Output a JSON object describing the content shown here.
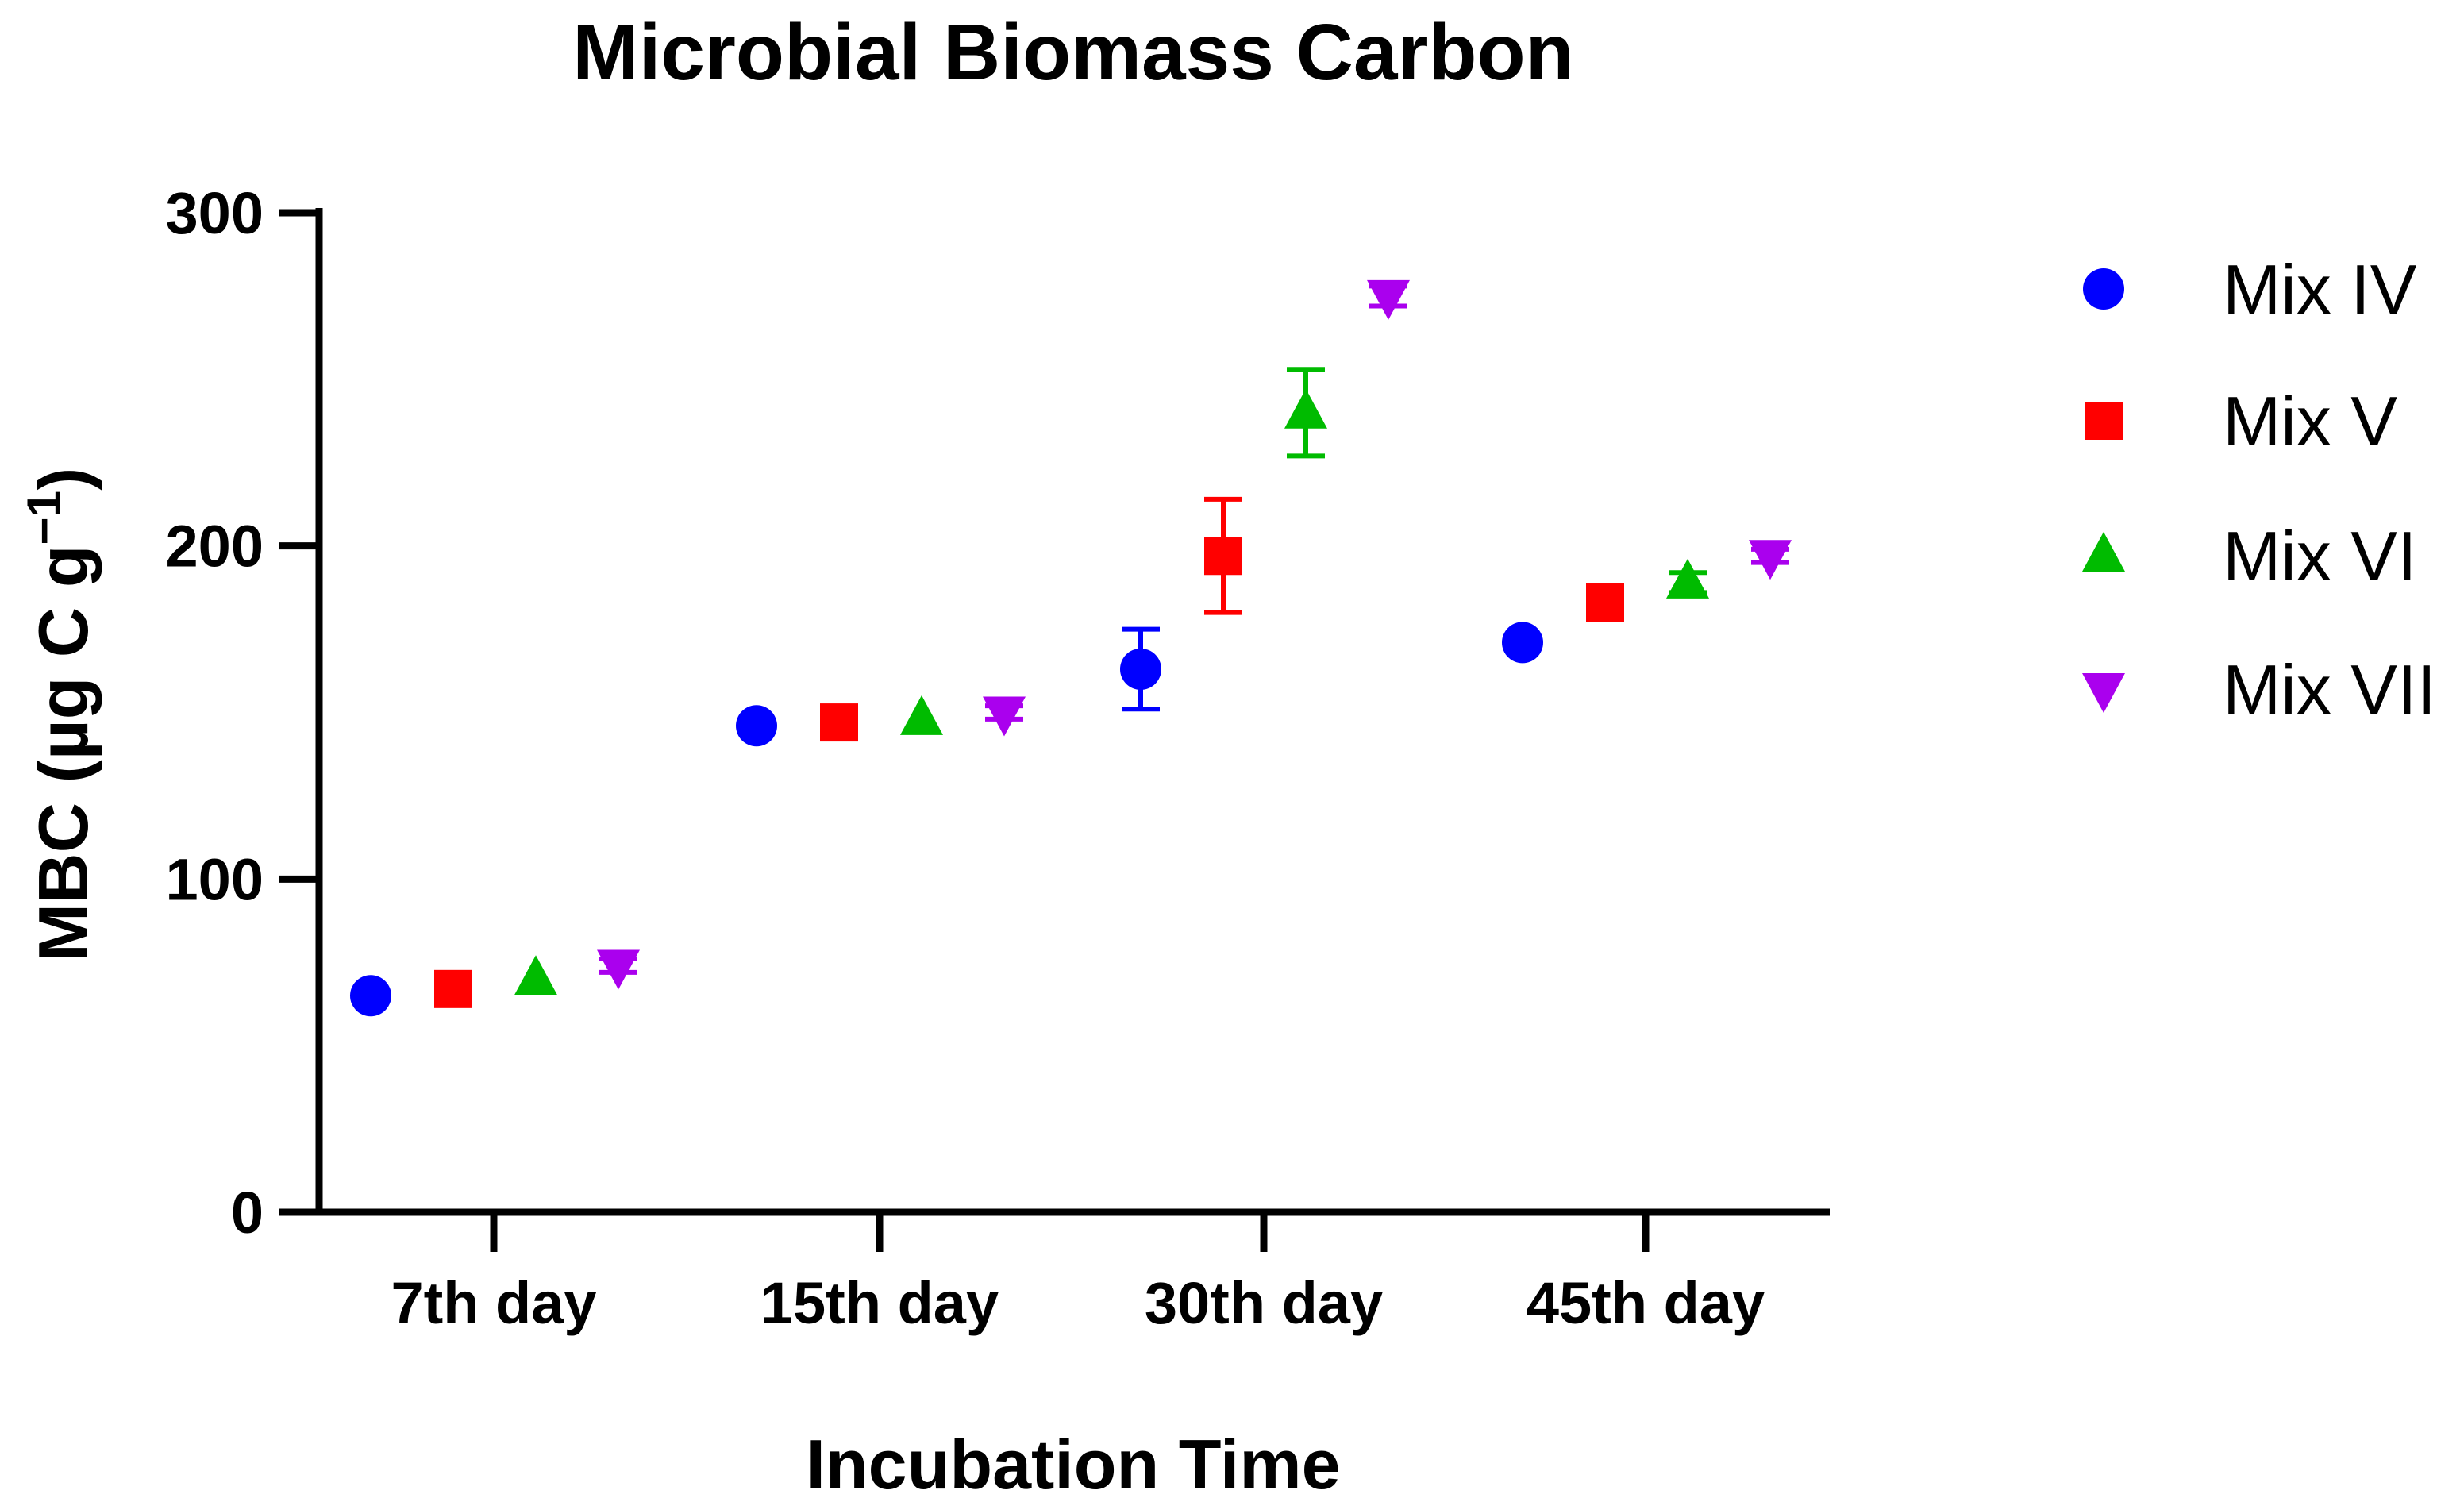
{
  "chart_data": {
    "type": "scatter",
    "title": "Microbial Biomass Carbon",
    "xlabel": "Incubation Time",
    "ylabel_main": "MBC (µg C g",
    "ylabel_sup": "−1",
    "ylabel_close": ")",
    "categories": [
      "7th day",
      "15th day",
      "30th day",
      "45th day"
    ],
    "ylim": [
      0,
      300
    ],
    "yticks": [
      0,
      100,
      200,
      300
    ],
    "legend_position": "right",
    "series": [
      {
        "name": "Mix IV",
        "marker": "circle",
        "color": "#0000ff",
        "values": [
          65,
          146,
          163,
          171
        ],
        "errors": [
          0,
          0,
          12,
          0
        ]
      },
      {
        "name": "Mix V",
        "marker": "square",
        "color": "#ff0000",
        "values": [
          67,
          147,
          197,
          183
        ],
        "errors": [
          0,
          0,
          17,
          0
        ]
      },
      {
        "name": "Mix VI",
        "marker": "triangle-up",
        "color": "#00bb00",
        "values": [
          70,
          148,
          240,
          189
        ],
        "errors": [
          0,
          0,
          13,
          3
        ]
      },
      {
        "name": "Mix VII",
        "marker": "triangle-down",
        "color": "#aa00ee",
        "values": [
          74,
          150,
          275,
          197
        ],
        "errors": [
          2,
          2,
          3,
          2
        ]
      }
    ]
  }
}
